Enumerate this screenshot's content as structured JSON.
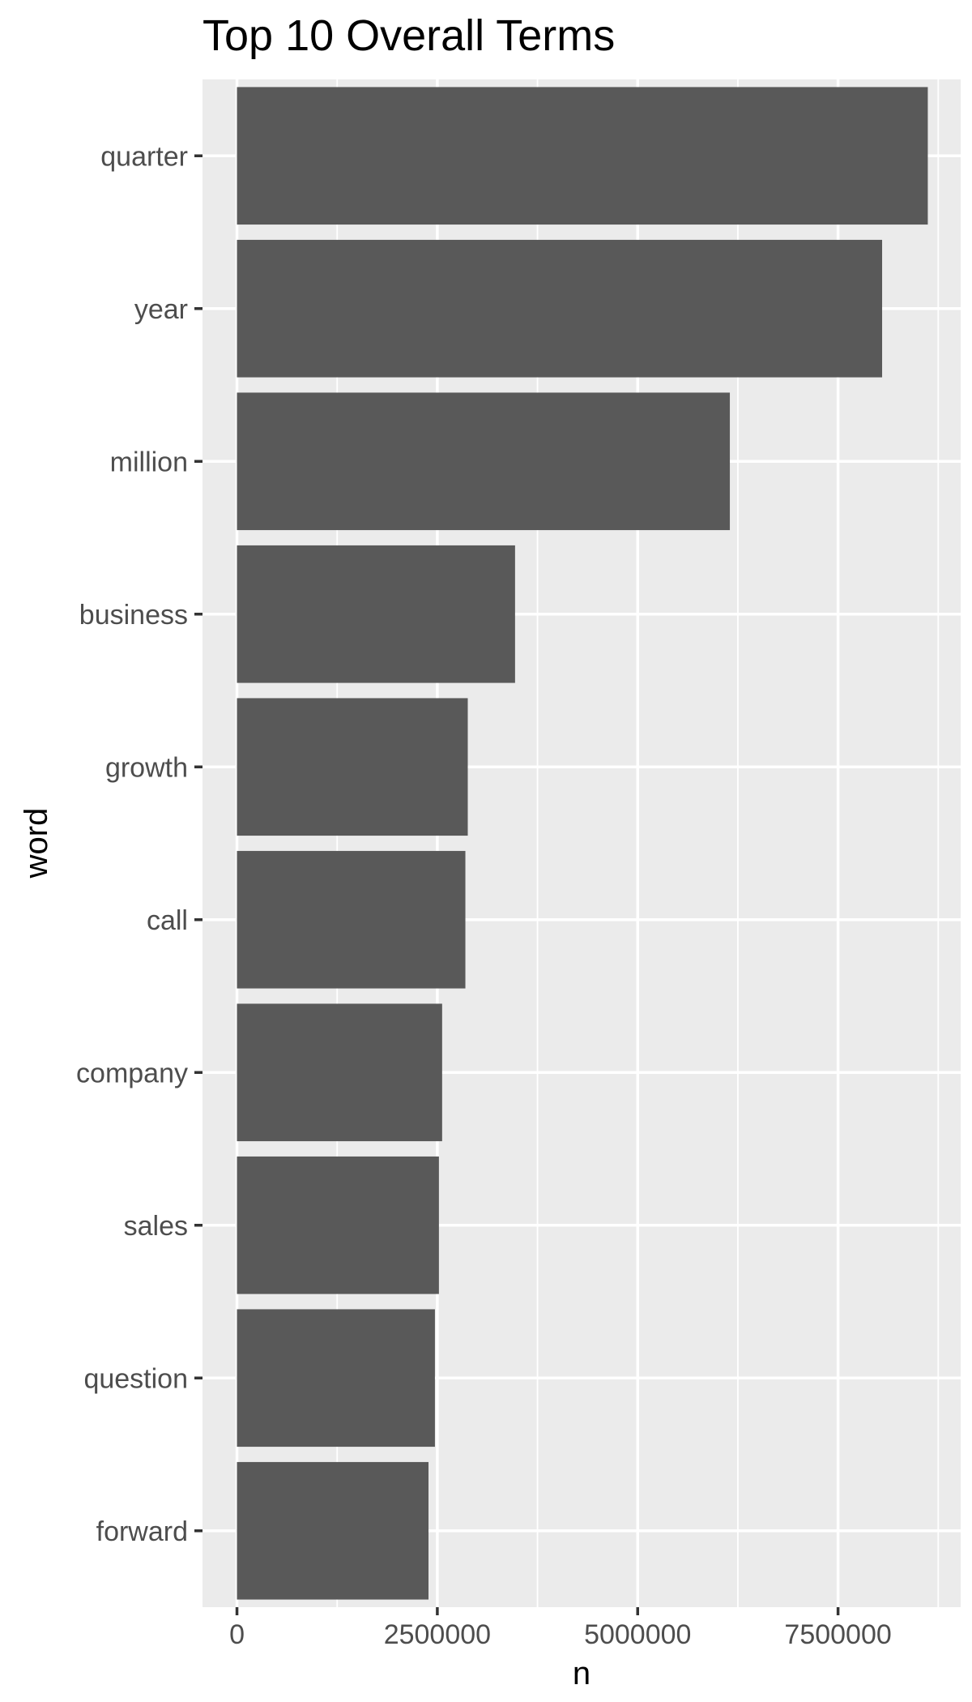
{
  "chart_data": {
    "type": "bar",
    "orientation": "horizontal",
    "title": "Top 10 Overall Terms",
    "xlabel": "n",
    "ylabel": "word",
    "categories": [
      "quarter",
      "year",
      "million",
      "business",
      "growth",
      "call",
      "company",
      "sales",
      "question",
      "forward"
    ],
    "values": [
      8620000,
      8050000,
      6150000,
      3470000,
      2880000,
      2850000,
      2560000,
      2520000,
      2470000,
      2390000
    ],
    "xlim": [
      -430000,
      9030000
    ],
    "x_ticks": [
      0,
      2500000,
      5000000,
      7500000
    ],
    "x_tick_labels": [
      "0",
      "2500000",
      "5000000",
      "7500000"
    ],
    "grid": true,
    "bar_color": "#595959",
    "panel_background": "#ebebeb",
    "grid_color": "#ffffff"
  }
}
